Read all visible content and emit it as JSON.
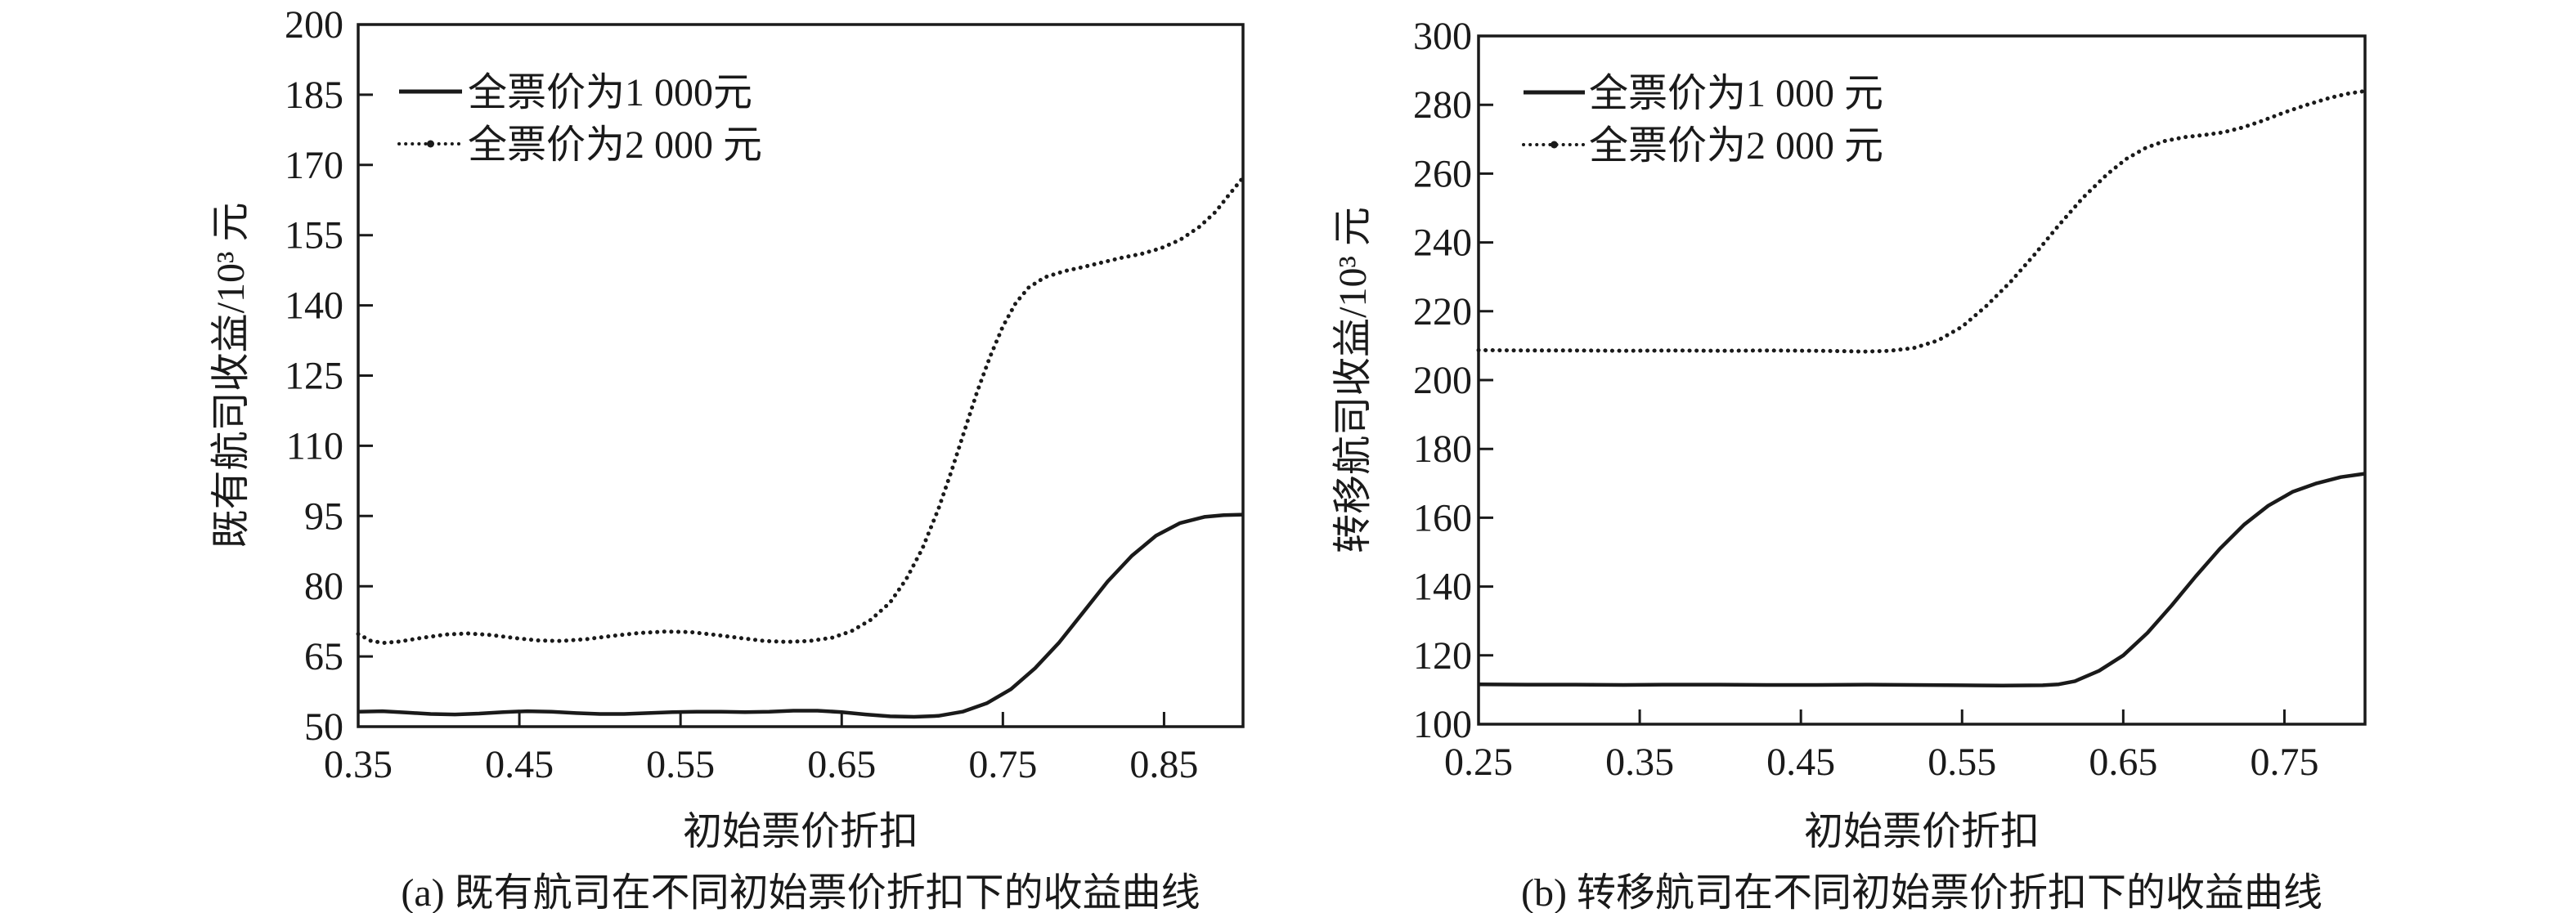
{
  "page": {
    "background": "#ffffff",
    "ink_color": "#1a1a1a"
  },
  "chart_data": [
    {
      "type": "line",
      "panel": "a",
      "caption": "(a) 既有航司在不同初始票价折扣下的收益曲线",
      "xlabel": "初始票价折扣",
      "ylabel": "既有航司收益/10³ 元",
      "xlim": [
        0.35,
        0.899
      ],
      "ylim": [
        50,
        200
      ],
      "grid": false,
      "legend_position": "upper-left-inside",
      "xticks": [
        0.35,
        0.45,
        0.55,
        0.65,
        0.75,
        0.85
      ],
      "xtick_labels": [
        "0.35",
        "0.45",
        "0.55",
        "0.65",
        "0.75",
        "0.85"
      ],
      "yticks": [
        50,
        65,
        80,
        95,
        110,
        125,
        140,
        155,
        170,
        185,
        200
      ],
      "ytick_labels": [
        "50",
        "65",
        "80",
        "95",
        "110",
        "125",
        "140",
        "155",
        "170",
        "185",
        "200"
      ],
      "series": [
        {
          "name": "全票价为1 000元",
          "style": "solid",
          "points": [
            [
              0.35,
              53.2
            ],
            [
              0.365,
              53.3
            ],
            [
              0.38,
              53.0
            ],
            [
              0.395,
              52.7
            ],
            [
              0.41,
              52.6
            ],
            [
              0.425,
              52.8
            ],
            [
              0.44,
              53.1
            ],
            [
              0.455,
              53.3
            ],
            [
              0.47,
              53.2
            ],
            [
              0.485,
              52.9
            ],
            [
              0.5,
              52.7
            ],
            [
              0.515,
              52.7
            ],
            [
              0.53,
              52.9
            ],
            [
              0.545,
              53.1
            ],
            [
              0.56,
              53.2
            ],
            [
              0.575,
              53.2
            ],
            [
              0.59,
              53.1
            ],
            [
              0.605,
              53.2
            ],
            [
              0.62,
              53.4
            ],
            [
              0.635,
              53.4
            ],
            [
              0.65,
              53.1
            ],
            [
              0.665,
              52.6
            ],
            [
              0.68,
              52.2
            ],
            [
              0.695,
              52.1
            ],
            [
              0.71,
              52.3
            ],
            [
              0.725,
              53.2
            ],
            [
              0.74,
              55.0
            ],
            [
              0.755,
              58.0
            ],
            [
              0.77,
              62.5
            ],
            [
              0.785,
              68.0
            ],
            [
              0.8,
              74.5
            ],
            [
              0.815,
              81.0
            ],
            [
              0.83,
              86.5
            ],
            [
              0.845,
              90.8
            ],
            [
              0.86,
              93.5
            ],
            [
              0.875,
              94.8
            ],
            [
              0.887,
              95.2
            ],
            [
              0.899,
              95.3
            ]
          ]
        },
        {
          "name": "全票价为2 000 元",
          "style": "dotted",
          "points": [
            [
              0.35,
              69.8
            ],
            [
              0.358,
              68.3
            ],
            [
              0.366,
              67.9
            ],
            [
              0.376,
              68.2
            ],
            [
              0.39,
              69.0
            ],
            [
              0.405,
              69.7
            ],
            [
              0.418,
              69.9
            ],
            [
              0.432,
              69.6
            ],
            [
              0.448,
              68.9
            ],
            [
              0.462,
              68.4
            ],
            [
              0.476,
              68.3
            ],
            [
              0.492,
              68.7
            ],
            [
              0.508,
              69.4
            ],
            [
              0.524,
              70.0
            ],
            [
              0.54,
              70.3
            ],
            [
              0.556,
              70.2
            ],
            [
              0.572,
              69.6
            ],
            [
              0.588,
              68.9
            ],
            [
              0.602,
              68.3
            ],
            [
              0.616,
              68.1
            ],
            [
              0.63,
              68.3
            ],
            [
              0.644,
              69.0
            ],
            [
              0.656,
              70.4
            ],
            [
              0.668,
              72.8
            ],
            [
              0.68,
              76.5
            ],
            [
              0.69,
              81.5
            ],
            [
              0.7,
              88.0
            ],
            [
              0.71,
              96.5
            ],
            [
              0.718,
              104.5
            ],
            [
              0.726,
              113.0
            ],
            [
              0.734,
              121.5
            ],
            [
              0.742,
              129.0
            ],
            [
              0.75,
              135.5
            ],
            [
              0.758,
              140.5
            ],
            [
              0.766,
              143.8
            ],
            [
              0.776,
              146.0
            ],
            [
              0.788,
              147.3
            ],
            [
              0.8,
              148.2
            ],
            [
              0.812,
              149.2
            ],
            [
              0.824,
              150.2
            ],
            [
              0.836,
              151.0
            ],
            [
              0.848,
              152.2
            ],
            [
              0.86,
              154.0
            ],
            [
              0.872,
              156.8
            ],
            [
              0.882,
              160.0
            ],
            [
              0.89,
              163.5
            ],
            [
              0.899,
              167.3
            ]
          ]
        }
      ]
    },
    {
      "type": "line",
      "panel": "b",
      "caption": "(b) 转移航司在不同初始票价折扣下的收益曲线",
      "xlabel": "初始票价折扣",
      "ylabel": "转移航司收益/10³ 元",
      "xlim": [
        0.25,
        0.8
      ],
      "ylim": [
        100,
        300
      ],
      "grid": false,
      "legend_position": "upper-left-inside",
      "xticks": [
        0.25,
        0.35,
        0.45,
        0.55,
        0.65,
        0.75
      ],
      "xtick_labels": [
        "0.25",
        "0.35",
        "0.45",
        "0.55",
        "0.65",
        "0.75"
      ],
      "yticks": [
        100,
        120,
        140,
        160,
        180,
        200,
        220,
        240,
        260,
        280,
        300
      ],
      "ytick_labels": [
        "100",
        "120",
        "140",
        "160",
        "180",
        "200",
        "220",
        "240",
        "260",
        "280",
        "300"
      ],
      "series": [
        {
          "name": "全票价为1 000 元",
          "style": "solid",
          "points": [
            [
              0.25,
              111.6
            ],
            [
              0.28,
              111.5
            ],
            [
              0.31,
              111.5
            ],
            [
              0.34,
              111.4
            ],
            [
              0.37,
              111.5
            ],
            [
              0.4,
              111.5
            ],
            [
              0.43,
              111.4
            ],
            [
              0.46,
              111.4
            ],
            [
              0.49,
              111.5
            ],
            [
              0.52,
              111.4
            ],
            [
              0.55,
              111.3
            ],
            [
              0.575,
              111.2
            ],
            [
              0.6,
              111.3
            ],
            [
              0.61,
              111.6
            ],
            [
              0.62,
              112.5
            ],
            [
              0.635,
              115.5
            ],
            [
              0.65,
              120.0
            ],
            [
              0.665,
              126.5
            ],
            [
              0.68,
              134.5
            ],
            [
              0.695,
              143.0
            ],
            [
              0.71,
              151.0
            ],
            [
              0.725,
              158.0
            ],
            [
              0.74,
              163.5
            ],
            [
              0.755,
              167.5
            ],
            [
              0.77,
              170.0
            ],
            [
              0.785,
              171.8
            ],
            [
              0.8,
              172.8
            ]
          ]
        },
        {
          "name": "全票价为2 000 元",
          "style": "dotted",
          "points": [
            [
              0.25,
              208.7
            ],
            [
              0.28,
              208.6
            ],
            [
              0.31,
              208.6
            ],
            [
              0.34,
              208.5
            ],
            [
              0.37,
              208.6
            ],
            [
              0.4,
              208.5
            ],
            [
              0.43,
              208.6
            ],
            [
              0.46,
              208.5
            ],
            [
              0.475,
              208.4
            ],
            [
              0.49,
              208.3
            ],
            [
              0.505,
              208.5
            ],
            [
              0.52,
              209.3
            ],
            [
              0.535,
              211.5
            ],
            [
              0.55,
              215.5
            ],
            [
              0.565,
              221.5
            ],
            [
              0.58,
              228.5
            ],
            [
              0.595,
              236.5
            ],
            [
              0.61,
              245.0
            ],
            [
              0.625,
              253.0
            ],
            [
              0.64,
              259.8
            ],
            [
              0.652,
              264.3
            ],
            [
              0.664,
              267.5
            ],
            [
              0.676,
              269.5
            ],
            [
              0.688,
              270.6
            ],
            [
              0.7,
              271.2
            ],
            [
              0.712,
              272.0
            ],
            [
              0.724,
              273.4
            ],
            [
              0.736,
              275.3
            ],
            [
              0.75,
              277.8
            ],
            [
              0.764,
              280.0
            ],
            [
              0.778,
              282.0
            ],
            [
              0.79,
              283.3
            ],
            [
              0.8,
              284.0
            ]
          ]
        }
      ]
    }
  ]
}
